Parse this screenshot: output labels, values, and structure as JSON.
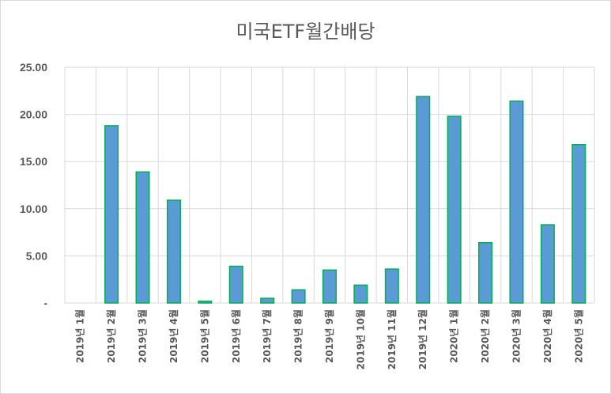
{
  "chart_data": {
    "type": "bar",
    "title": "미국ETF월간배당",
    "xlabel": "",
    "ylabel": "",
    "ylim": [
      0,
      25
    ],
    "y_ticks": [
      0,
      5,
      10,
      15,
      20,
      25
    ],
    "y_tick_labels": [
      "-",
      "5.00",
      "10.00",
      "15.00",
      "20.00",
      "25.00"
    ],
    "grid": true,
    "legend": "none",
    "categories": [
      "2019년 1월",
      "2019년 2월",
      "2019년 3월",
      "2019년 4월",
      "2019년 5월",
      "2019년 6월",
      "2019년 7월",
      "2019년 8월",
      "2019년 9월",
      "2019년 10월",
      "2019년 11월",
      "2019년 12월",
      "2020년 1월",
      "2020년 2월",
      "2020년 3월",
      "2020년 4월",
      "2020년 5월"
    ],
    "values": [
      0,
      18.8,
      13.9,
      10.9,
      0.2,
      3.9,
      0.5,
      1.4,
      3.5,
      1.9,
      3.6,
      21.9,
      19.8,
      6.4,
      21.4,
      8.3,
      16.8
    ],
    "colors": {
      "bar_fill": "#5b9bd5",
      "bar_stroke": "#00b050",
      "grid": "#d9d9d9",
      "text": "#595959"
    }
  }
}
